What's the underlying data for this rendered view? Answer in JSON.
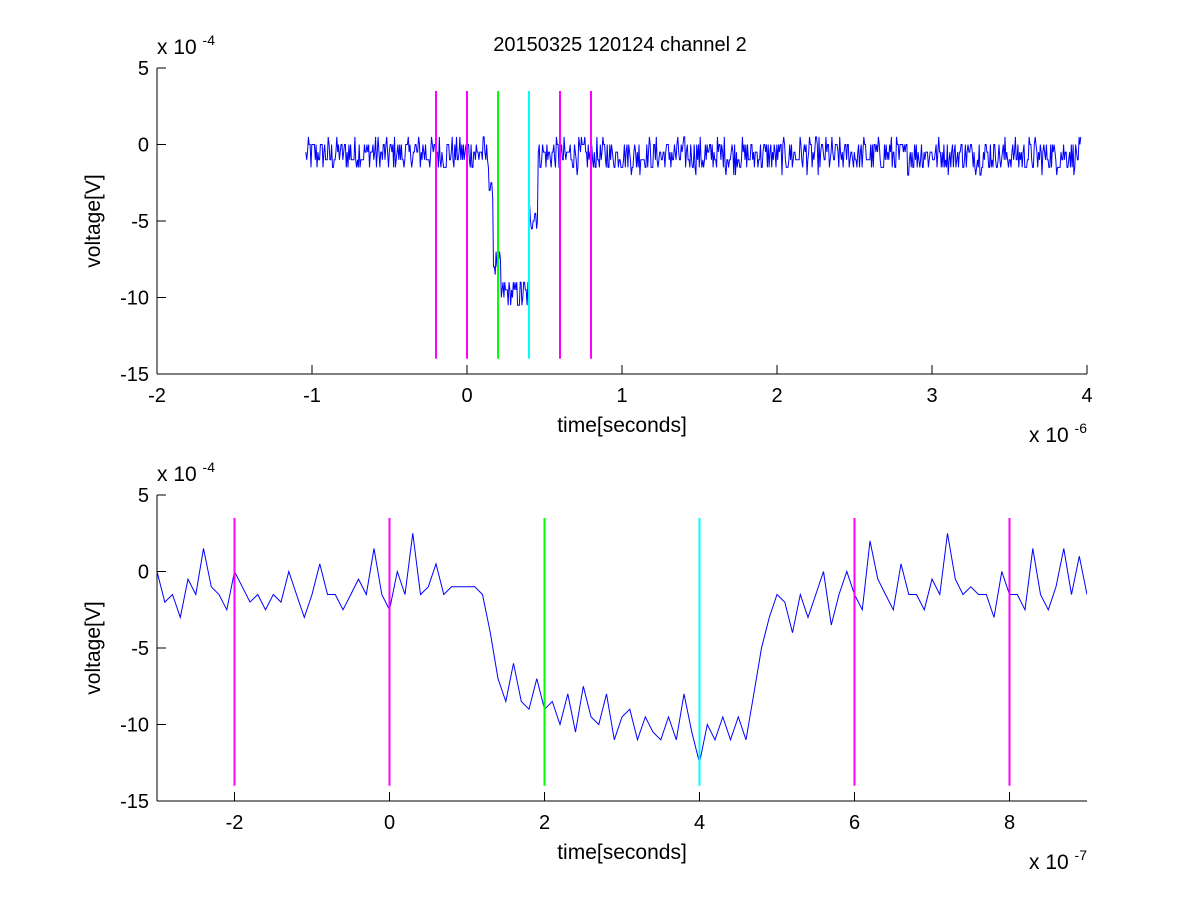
{
  "figure": {
    "title": "20150325 120124 channel 2"
  },
  "colors": {
    "trace": "#0000ff",
    "marker_magenta": "#ff00ff",
    "marker_green": "#00ff00",
    "marker_cyan": "#00ffff",
    "axes": "#000000",
    "background": "#ffffff"
  },
  "chart_data": [
    {
      "type": "line",
      "name": "top",
      "xlabel": "time[seconds]",
      "ylabel": "voltage[V]",
      "x_exponent_label": "x 10",
      "x_exponent": "-6",
      "y_exponent_label": "x 10",
      "y_exponent": "-4",
      "xlim": [
        -2e-06,
        4e-06
      ],
      "ylim": [
        -0.0015,
        0.0005
      ],
      "xticks": [
        -2e-06,
        -1e-06,
        0,
        1e-06,
        2e-06,
        3e-06,
        4e-06
      ],
      "xtick_labels": [
        "-2",
        "-1",
        "0",
        "1",
        "2",
        "3",
        "4"
      ],
      "yticks": [
        0.0005,
        0,
        -0.0005,
        -0.001,
        -0.0015
      ],
      "ytick_labels": [
        "5",
        "0",
        "-5",
        "-10",
        "-15"
      ],
      "grid": false,
      "series": [
        {
          "x_start": -1.04e-06,
          "x_end": 3.96e-06,
          "description_of_shape": "noisy baseline",
          "segments": [
            {
              "x": [
                -1.04e-06,
                1.4e-07
              ],
              "level": -6e-05,
              "noise": 0.00011
            },
            {
              "x": [
                1.4e-07,
                1.7e-07
              ],
              "level": -0.0003,
              "noise": 6e-05
            },
            {
              "x": [
                1.7e-07,
                2.2e-07
              ],
              "level": -0.00078,
              "noise": 8e-05
            },
            {
              "x": [
                2.2e-07,
                4e-07
              ],
              "level": -0.00098,
              "noise": 0.0001
            },
            {
              "x": [
                4e-07,
                4.6e-07
              ],
              "level": -0.00045,
              "noise": 0.00012
            },
            {
              "x": [
                4.6e-07,
                3.96e-06
              ],
              "level": -7e-05,
              "noise": 0.00011
            }
          ]
        }
      ],
      "markers": [
        {
          "x": -2e-07,
          "color": "#ff00ff"
        },
        {
          "x": 0,
          "color": "#ff00ff"
        },
        {
          "x": 2e-07,
          "color": "#00ff00"
        },
        {
          "x": 4e-07,
          "color": "#00ffff"
        },
        {
          "x": 6e-07,
          "color": "#ff00ff"
        },
        {
          "x": 8e-07,
          "color": "#ff00ff"
        }
      ],
      "marker_ylim": [
        -0.0014,
        0.00035
      ]
    },
    {
      "type": "line",
      "name": "bottom",
      "xlabel": "time[seconds]",
      "ylabel": "voltage[V]",
      "x_exponent_label": "x 10",
      "x_exponent": "-7",
      "y_exponent_label": "x 10",
      "y_exponent": "-4",
      "xlim": [
        -3e-07,
        9e-07
      ],
      "ylim": [
        -0.0015,
        0.0005
      ],
      "xticks": [
        -2e-07,
        0,
        2e-07,
        4e-07,
        6e-07,
        8e-07
      ],
      "xtick_labels": [
        "-2",
        "0",
        "2",
        "4",
        "6",
        "8"
      ],
      "yticks": [
        0.0005,
        0,
        -0.0005,
        -0.001,
        -0.0015
      ],
      "ytick_labels": [
        "5",
        "0",
        "-5",
        "-10",
        "-15"
      ],
      "grid": false,
      "series": [
        {
          "x": [
            -3e-07,
            -2.9e-07,
            -2.8e-07,
            -2.7e-07,
            -2.6e-07,
            -2.5e-07,
            -2.4e-07,
            -2.3e-07,
            -2.2e-07,
            -2.1e-07,
            -2e-07,
            -1.9e-07,
            -1.8e-07,
            -1.7e-07,
            -1.6e-07,
            -1.5e-07,
            -1.4e-07,
            -1.3e-07,
            -1.2e-07,
            -1.1e-07,
            -1e-07,
            -9e-08,
            -8e-08,
            -7e-08,
            -6e-08,
            -5e-08,
            -4e-08,
            -3e-08,
            -2e-08,
            -1e-08,
            0,
            1e-08,
            2e-08,
            3e-08,
            4e-08,
            5e-08,
            6e-08,
            7e-08,
            8e-08,
            9e-08,
            1e-07,
            1.1e-07,
            1.2e-07,
            1.3e-07,
            1.4e-07,
            1.5e-07,
            1.6e-07,
            1.7e-07,
            1.8e-07,
            1.9e-07,
            2e-07,
            2.1e-07,
            2.2e-07,
            2.3e-07,
            2.4e-07,
            2.5e-07,
            2.6e-07,
            2.7e-07,
            2.8e-07,
            2.9e-07,
            3e-07,
            3.1e-07,
            3.2e-07,
            3.3e-07,
            3.4e-07,
            3.5e-07,
            3.6e-07,
            3.7e-07,
            3.8e-07,
            3.9e-07,
            4e-07,
            4.1e-07,
            4.2e-07,
            4.3e-07,
            4.4e-07,
            4.5e-07,
            4.6e-07,
            4.7e-07,
            4.8e-07,
            4.9e-07,
            5e-07,
            5.1e-07,
            5.2e-07,
            5.3e-07,
            5.4e-07,
            5.5e-07,
            5.6e-07,
            5.7e-07,
            5.8e-07,
            5.9e-07,
            6e-07,
            6.1e-07,
            6.2e-07,
            6.3e-07,
            6.4e-07,
            6.5e-07,
            6.6e-07,
            6.7e-07,
            6.8e-07,
            6.9e-07,
            7e-07,
            7.1e-07,
            7.2e-07,
            7.3e-07,
            7.4e-07,
            7.5e-07,
            7.6e-07,
            7.7e-07,
            7.8e-07,
            7.9e-07,
            8e-07,
            8.1e-07,
            8.2e-07,
            8.3e-07,
            8.4e-07,
            8.5e-07,
            8.6e-07,
            8.7e-07,
            8.8e-07,
            8.9e-07,
            9e-07
          ],
          "y": [
            0,
            -0.0002,
            -0.00015,
            -0.0003,
            -5e-05,
            -0.00015,
            0.00015,
            -0.0001,
            -0.00015,
            -0.00025,
            0,
            -0.0001,
            -0.0002,
            -0.00015,
            -0.00025,
            -0.00015,
            -0.0002,
            0,
            -0.00015,
            -0.0003,
            -0.00015,
            5e-05,
            -0.00015,
            -0.00015,
            -0.00025,
            -0.00015,
            -5e-05,
            -0.00015,
            0.00015,
            -0.00015,
            -0.00025,
            0,
            -0.00015,
            0.00025,
            -0.00015,
            -0.0001,
            5e-05,
            -0.00015,
            -0.0001,
            -0.0001,
            -0.0001,
            -0.0001,
            -0.00015,
            -0.0004,
            -0.0007,
            -0.00085,
            -0.0006,
            -0.00085,
            -0.0009,
            -0.0007,
            -0.0009,
            -0.00085,
            -0.001,
            -0.0008,
            -0.00105,
            -0.00075,
            -0.00095,
            -0.001,
            -0.0008,
            -0.0011,
            -0.00095,
            -0.0009,
            -0.0011,
            -0.00095,
            -0.00105,
            -0.0011,
            -0.00095,
            -0.0011,
            -0.0008,
            -0.00105,
            -0.00125,
            -0.001,
            -0.0011,
            -0.00095,
            -0.0011,
            -0.00095,
            -0.0011,
            -0.0008,
            -0.0005,
            -0.0003,
            -0.00015,
            -0.0002,
            -0.0004,
            -0.00015,
            -0.0003,
            -0.00015,
            0,
            -0.00035,
            -0.00015,
            0,
            -0.00015,
            -0.00025,
            0.0002,
            -5e-05,
            -0.00015,
            -0.00025,
            5e-05,
            -0.00015,
            -0.00015,
            -0.00025,
            -5e-05,
            -0.00015,
            0.00025,
            -5e-05,
            -0.00015,
            -0.0001,
            -0.00015,
            -0.00015,
            -0.0003,
            0,
            -0.00015,
            -0.00015,
            -0.00025,
            0.00015,
            -0.00015,
            -0.00025,
            -0.0001,
            0.00015,
            -0.00015,
            0.0001,
            -0.00015
          ]
        }
      ],
      "markers": [
        {
          "x": -2e-07,
          "color": "#ff00ff"
        },
        {
          "x": 0,
          "color": "#ff00ff"
        },
        {
          "x": 2e-07,
          "color": "#00ff00"
        },
        {
          "x": 4e-07,
          "color": "#00ffff"
        },
        {
          "x": 6e-07,
          "color": "#ff00ff"
        },
        {
          "x": 8e-07,
          "color": "#ff00ff"
        }
      ],
      "marker_ylim": [
        -0.0014,
        0.00035
      ]
    }
  ]
}
